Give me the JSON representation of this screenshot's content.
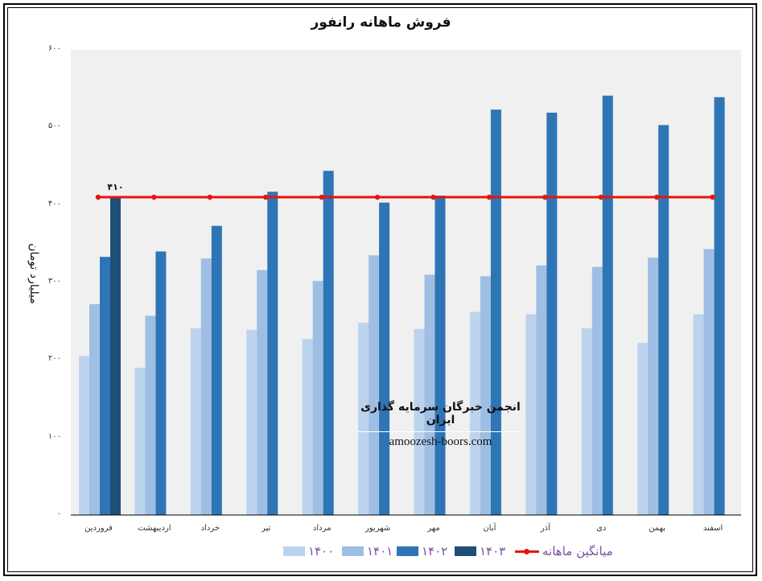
{
  "chart_data": {
    "type": "bar",
    "title": "فروش ماهانه رانفور",
    "ylabel": "میلیارد تومان",
    "xlabel": "",
    "ylim": [
      0,
      600
    ],
    "yticks": [
      "۰",
      "۱۰۰",
      "۲۰۰",
      "۳۰۰",
      "۴۰۰",
      "۵۰۰",
      "۶۰۰"
    ],
    "ytick_values": [
      0,
      100,
      200,
      300,
      400,
      500,
      600
    ],
    "grid": false,
    "legend_position": "bottom",
    "categories": [
      "فروردین",
      "اردیبهشت",
      "خرداد",
      "تیر",
      "مرداد",
      "شهریور",
      "مهر",
      "آبان",
      "آذر",
      "دی",
      "بهمن",
      "اسفند"
    ],
    "series": [
      {
        "name": "۱۴۰۰",
        "color": "#bcd3ee",
        "values": [
          205,
          190,
          241,
          239,
          227,
          248,
          240,
          262,
          259,
          241,
          222,
          259
        ]
      },
      {
        "name": "۱۴۰۱",
        "color": "#9ebfe3",
        "values": [
          272,
          257,
          331,
          316,
          302,
          335,
          310,
          308,
          322,
          320,
          332,
          343
        ]
      },
      {
        "name": "۱۴۰۲",
        "color": "#2e75b6",
        "values": [
          333,
          340,
          373,
          417,
          444,
          403,
          412,
          523,
          519,
          541,
          503,
          539
        ]
      },
      {
        "name": "۱۴۰۳",
        "color": "#1f4e79",
        "values": [
          410,
          null,
          null,
          null,
          null,
          null,
          null,
          null,
          null,
          null,
          null,
          null
        ]
      }
    ],
    "average_line": {
      "name": "میانگین ماهانه",
      "color": "#e8140c",
      "value": 410
    },
    "annotations": [
      {
        "text": "۴۱۰",
        "category": "فروردین",
        "series": "۱۴۰۳"
      }
    ]
  },
  "watermark": {
    "title": "انجمن خبرگان سرمایه گذاری ایران",
    "url": "amoozesh-boors.com"
  }
}
